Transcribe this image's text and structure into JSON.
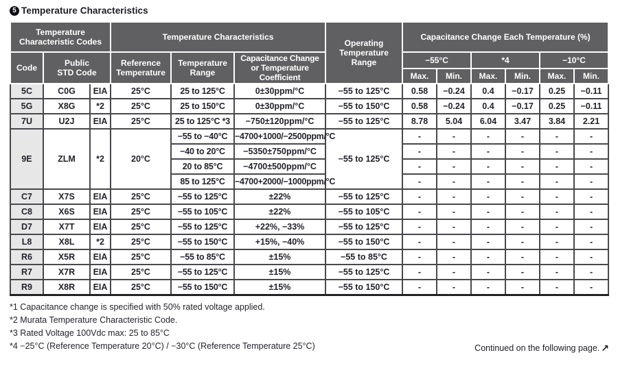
{
  "title": {
    "marker_digit": "5",
    "text": "Temperature Characteristics"
  },
  "table": {
    "header": {
      "temp_char_codes": "Temperature Characteristic Codes",
      "temp_characteristics": "Temperature Characteristics",
      "operating_temp_range": "Operating Temperature Range",
      "cap_change_each_temp": "Capacitance Change Each Temperature (%)",
      "code": "Code",
      "public_std_code": "Public\nSTD Code",
      "reference_temperature": "Reference Temperature",
      "temperature_range": "Temperature Range",
      "cap_change_or_coeff": "Capacitance Change or Temperature Coefficient",
      "col_minus55": "−55°C",
      "col_star4": "*4",
      "col_minus10": "−10°C",
      "maxmin": [
        "Max.",
        "Min.",
        "Max.",
        "Min.",
        "Max.",
        "Min."
      ]
    },
    "rows": [
      {
        "code": "5C",
        "std": "C0G",
        "org": "EIA",
        "ref": "25°C",
        "op": "−55 to 125°C",
        "sub": [
          {
            "range": "25 to 125°C",
            "coeff": "0±30ppm/°C"
          }
        ],
        "vals": [
          [
            "0.58",
            "−0.24",
            "0.4",
            "−0.17",
            "0.25",
            "−0.11"
          ]
        ]
      },
      {
        "code": "5G",
        "std": "X8G",
        "org": "*2",
        "ref": "25°C",
        "op": "−55 to 150°C",
        "sub": [
          {
            "range": "25 to 150°C",
            "coeff": "0±30ppm/°C"
          }
        ],
        "vals": [
          [
            "0.58",
            "−0.24",
            "0.4",
            "−0.17",
            "0.25",
            "−0.11"
          ]
        ]
      },
      {
        "code": "7U",
        "std": "U2J",
        "org": "EIA",
        "ref": "25°C",
        "op": "−55 to 125°C",
        "sub": [
          {
            "range": "25 to 125°C *3",
            "coeff": "−750±120ppm/°C"
          }
        ],
        "vals": [
          [
            "8.78",
            "5.04",
            "6.04",
            "3.47",
            "3.84",
            "2.21"
          ]
        ]
      },
      {
        "code": "9E",
        "std": "ZLM",
        "org": "*2",
        "ref": "20°C",
        "op": "−55 to 125°C",
        "sub": [
          {
            "range": "−55 to −40°C",
            "coeff": "−4700+1000/−2500ppm/°C",
            "small": true
          },
          {
            "range": "−40 to 20°C",
            "coeff": "−5350±750ppm/°C"
          },
          {
            "range": "20 to 85°C",
            "coeff": "−4700±500ppm/°C"
          },
          {
            "range": "85 to 125°C",
            "coeff": "−4700+2000/−1000ppm/°C",
            "small": true
          }
        ],
        "vals": [
          [
            "-",
            "-",
            "-",
            "-",
            "-",
            "-"
          ],
          [
            "-",
            "-",
            "-",
            "-",
            "-",
            "-"
          ],
          [
            "-",
            "-",
            "-",
            "-",
            "-",
            "-"
          ],
          [
            "-",
            "-",
            "-",
            "-",
            "-",
            "-"
          ]
        ]
      },
      {
        "code": "C7",
        "std": "X7S",
        "org": "EIA",
        "ref": "25°C",
        "op": "−55 to 125°C",
        "sub": [
          {
            "range": "−55 to 125°C",
            "coeff": "±22%"
          }
        ],
        "vals": [
          [
            "-",
            "-",
            "-",
            "-",
            "-",
            "-"
          ]
        ]
      },
      {
        "code": "C8",
        "std": "X6S",
        "org": "EIA",
        "ref": "25°C",
        "op": "−55 to 105°C",
        "sub": [
          {
            "range": "−55 to 105°C",
            "coeff": "±22%"
          }
        ],
        "vals": [
          [
            "-",
            "-",
            "-",
            "-",
            "-",
            "-"
          ]
        ]
      },
      {
        "code": "D7",
        "std": "X7T",
        "org": "EIA",
        "ref": "25°C",
        "op": "−55 to 125°C",
        "sub": [
          {
            "range": "−55 to 125°C",
            "coeff": "+22%, −33%"
          }
        ],
        "vals": [
          [
            "-",
            "-",
            "-",
            "-",
            "-",
            "-"
          ]
        ]
      },
      {
        "code": "L8",
        "std": "X8L",
        "org": "*2",
        "ref": "25°C",
        "op": "−55 to 150°C",
        "sub": [
          {
            "range": "−55 to 150°C",
            "coeff": "+15%, −40%"
          }
        ],
        "vals": [
          [
            "-",
            "-",
            "-",
            "-",
            "-",
            "-"
          ]
        ]
      },
      {
        "code": "R6",
        "std": "X5R",
        "org": "EIA",
        "ref": "25°C",
        "op": "−55 to 85°C",
        "sub": [
          {
            "range": "−55 to 85°C",
            "coeff": "±15%"
          }
        ],
        "vals": [
          [
            "-",
            "-",
            "-",
            "-",
            "-",
            "-"
          ]
        ]
      },
      {
        "code": "R7",
        "std": "X7R",
        "org": "EIA",
        "ref": "25°C",
        "op": "−55 to 125°C",
        "sub": [
          {
            "range": "−55 to 125°C",
            "coeff": "±15%"
          }
        ],
        "vals": [
          [
            "-",
            "-",
            "-",
            "-",
            "-",
            "-"
          ]
        ]
      },
      {
        "code": "R9",
        "std": "X8R",
        "org": "EIA",
        "ref": "25°C",
        "op": "−55 to 150°C",
        "sub": [
          {
            "range": "−55 to 150°C",
            "coeff": "±15%"
          }
        ],
        "vals": [
          [
            "-",
            "-",
            "-",
            "-",
            "-",
            "-"
          ]
        ]
      }
    ]
  },
  "footnotes": [
    "*1 Capacitance change is specified with 50% rated voltage applied.",
    "*2 Murata Temperature Characteristic Code.",
    "*3 Rated Voltage 100Vdc max: 25 to 85°C",
    "*4 −25°C (Reference Temperature 20°C) / −30°C (Reference Temperature 25°C)"
  ],
  "continued": {
    "text": "Continued on the following page.",
    "arrow": "↗"
  },
  "colors": {
    "header_bg": "#606062",
    "header_text": "#ffffff",
    "code_column_bg": "#e7e7e7",
    "body_border": "#48484c",
    "text": "#23232b"
  }
}
